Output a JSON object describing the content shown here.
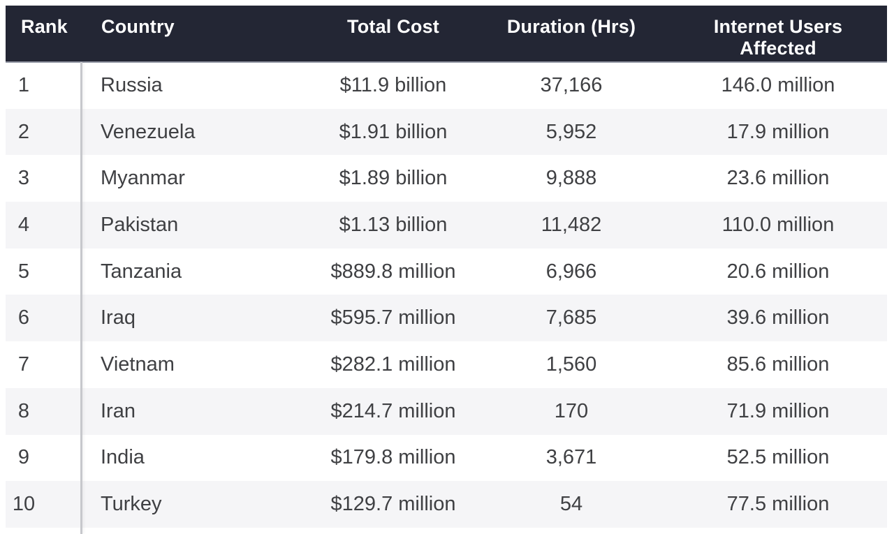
{
  "table": {
    "columns": [
      "Rank",
      "Country",
      "Total Cost",
      "Duration (Hrs)",
      "Internet Users Affected"
    ],
    "rows": [
      {
        "rank": "1",
        "country": "Russia",
        "total_cost": "$11.9 billion",
        "duration": "37,166",
        "users": "146.0 million"
      },
      {
        "rank": "2",
        "country": "Venezuela",
        "total_cost": "$1.91 billion",
        "duration": "5,952",
        "users": "17.9 million"
      },
      {
        "rank": "3",
        "country": "Myanmar",
        "total_cost": "$1.89 billion",
        "duration": "9,888",
        "users": "23.6 million"
      },
      {
        "rank": "4",
        "country": "Pakistan",
        "total_cost": "$1.13 billion",
        "duration": "11,482",
        "users": "110.0 million"
      },
      {
        "rank": "5",
        "country": "Tanzania",
        "total_cost": "$889.8 million",
        "duration": "6,966",
        "users": "20.6 million"
      },
      {
        "rank": "6",
        "country": "Iraq",
        "total_cost": "$595.7 million",
        "duration": "7,685",
        "users": "39.6 million"
      },
      {
        "rank": "7",
        "country": "Vietnam",
        "total_cost": "$282.1 million",
        "duration": "1,560",
        "users": "85.6 million"
      },
      {
        "rank": "8",
        "country": "Iran",
        "total_cost": "$214.7 million",
        "duration": "170",
        "users": "71.9 million"
      },
      {
        "rank": "9",
        "country": "India",
        "total_cost": "$179.8 million",
        "duration": "3,671",
        "users": "52.5 million"
      },
      {
        "rank": "10",
        "country": "Turkey",
        "total_cost": "$129.7 million",
        "duration": "54",
        "users": "77.5 million"
      }
    ]
  },
  "colors": {
    "header_bg": "#232634",
    "header_text": "#ffffff",
    "row_stripe": "#f5f5f7",
    "row_white": "#ffffff",
    "body_text": "#3f4043",
    "divider": "#c7c8cc",
    "header_edge": "#9599a6",
    "page_bg": "#ffffff"
  },
  "chart_data": {
    "type": "table",
    "title": "",
    "columns": [
      "Rank",
      "Country",
      "Total Cost",
      "Duration (Hrs)",
      "Internet Users Affected"
    ],
    "rows": [
      [
        1,
        "Russia",
        "$11.9 billion",
        37166,
        "146.0 million"
      ],
      [
        2,
        "Venezuela",
        "$1.91 billion",
        5952,
        "17.9 million"
      ],
      [
        3,
        "Myanmar",
        "$1.89 billion",
        9888,
        "23.6 million"
      ],
      [
        4,
        "Pakistan",
        "$1.13 billion",
        11482,
        "110.0 million"
      ],
      [
        5,
        "Tanzania",
        "$889.8 million",
        6966,
        "20.6 million"
      ],
      [
        6,
        "Iraq",
        "$595.7 million",
        7685,
        "39.6 million"
      ],
      [
        7,
        "Vietnam",
        "$282.1 million",
        1560,
        "85.6 million"
      ],
      [
        8,
        "Iran",
        "$214.7 million",
        170,
        "71.9 million"
      ],
      [
        9,
        "India",
        "$179.8 million",
        3671,
        "52.5 million"
      ],
      [
        10,
        "Turkey",
        "$129.7 million",
        54,
        "77.5 million"
      ]
    ],
    "layout_hints": {
      "zebra_striping": true,
      "header_style": "dark-navy, white bold text",
      "rank_column_divider": true
    }
  }
}
